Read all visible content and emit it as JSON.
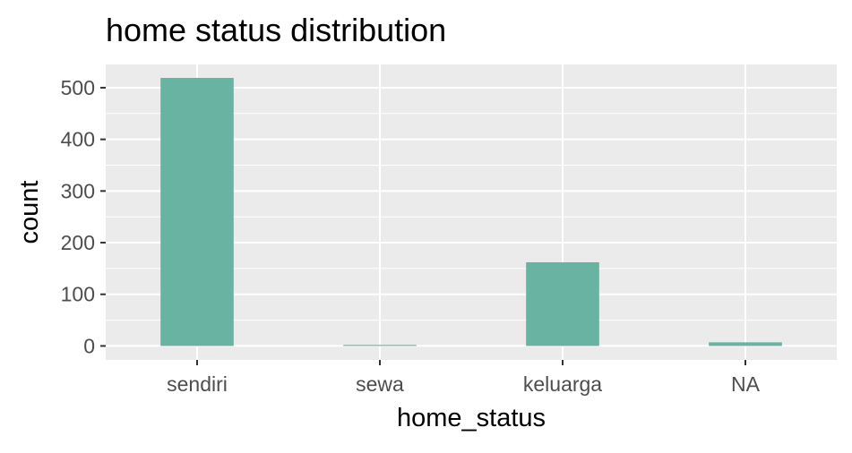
{
  "chart_data": {
    "type": "bar",
    "title": "home status distribution",
    "xlabel": "home_status",
    "ylabel": "count",
    "categories": [
      "sendiri",
      "sewa",
      "keluarga",
      "NA"
    ],
    "values": [
      519,
      2,
      162,
      7
    ],
    "ylim": [
      -27,
      545
    ],
    "yticks": [
      0,
      100,
      200,
      300,
      400,
      500
    ],
    "ytick_labels": [
      "0",
      "100",
      "200",
      "300",
      "400",
      "500"
    ],
    "grid": true,
    "legend": "none",
    "colors": {
      "bar": "#69b3a2",
      "panel": "#ebebeb",
      "grid": "#ffffff",
      "tick_text": "#4d4d4d",
      "tick_mark": "#333333"
    }
  }
}
